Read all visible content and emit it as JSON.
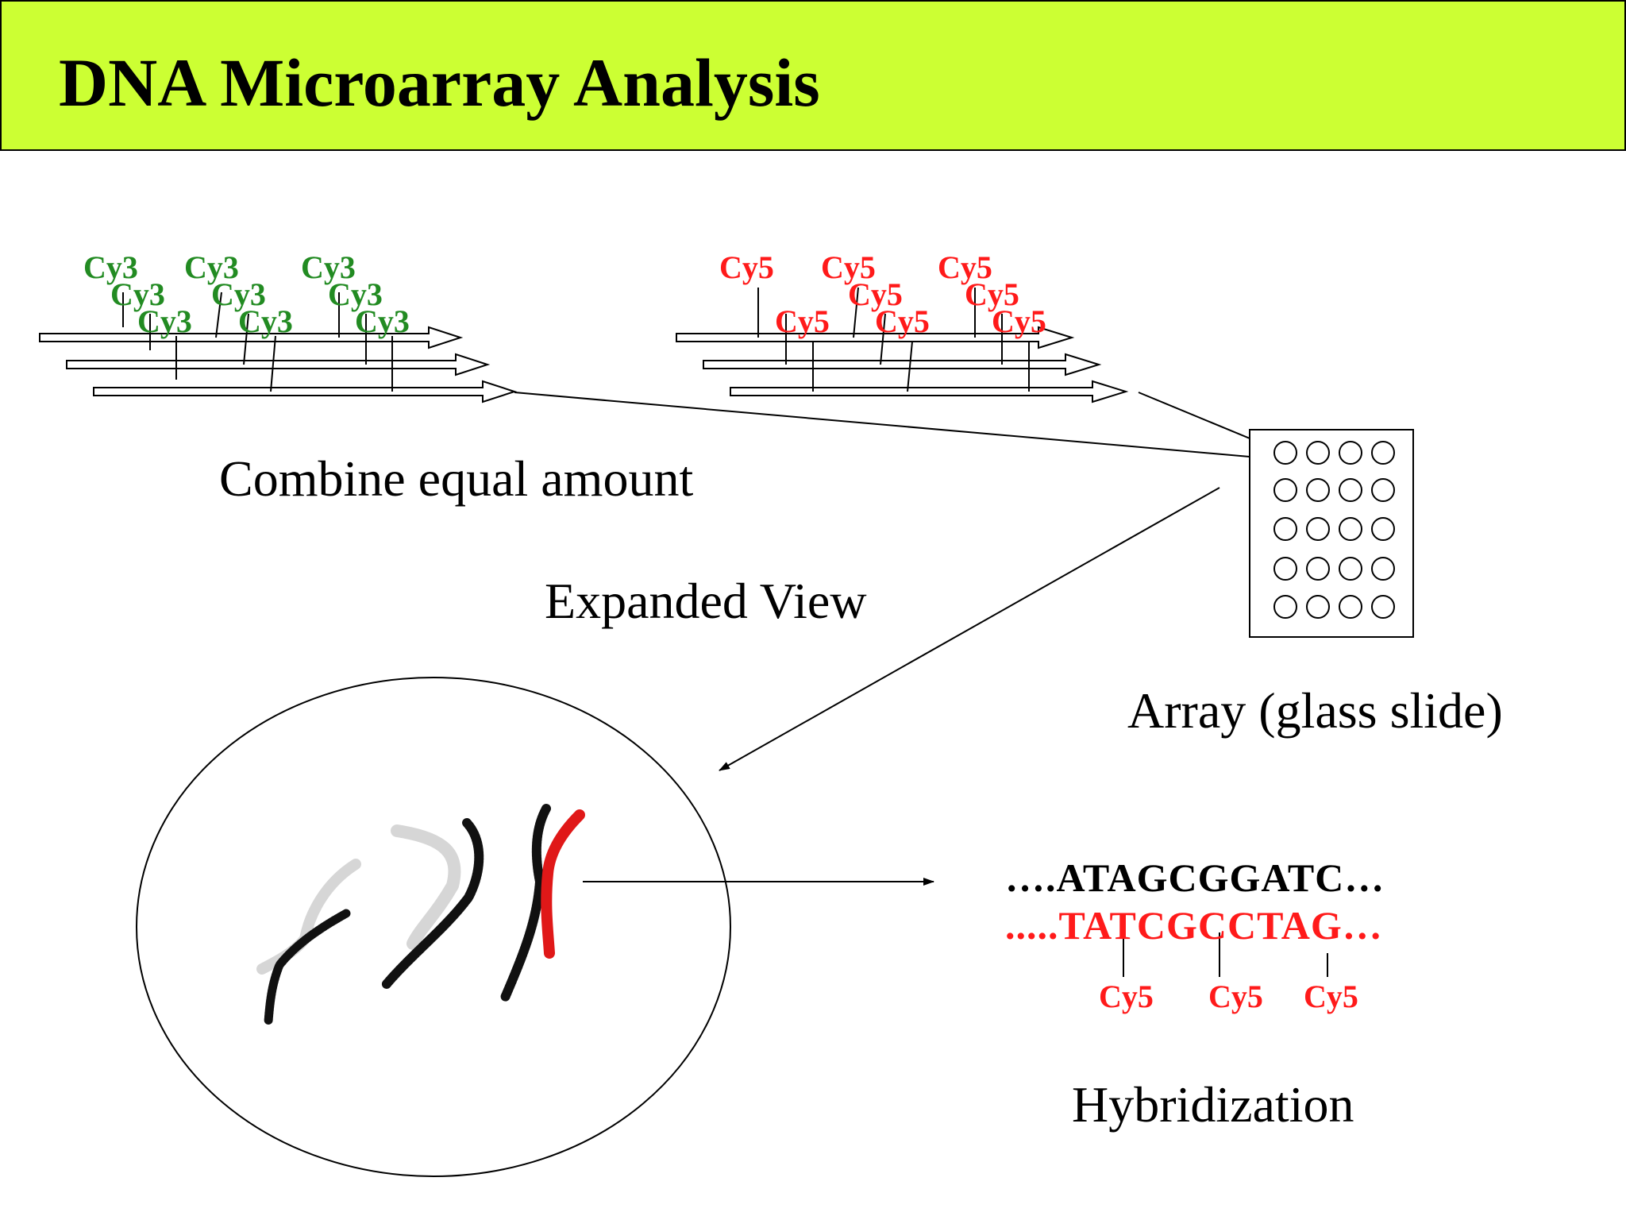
{
  "title": "DNA Microarray Analysis",
  "labels": {
    "combine": "Combine equal amount",
    "expanded": "Expanded View",
    "array": "Array (glass slide)",
    "hybridization": "Hybridization"
  },
  "dyes": {
    "green": "Cy3",
    "red": "Cy5"
  },
  "sequences": {
    "top": "….ATAGCGGATC…",
    "bottom": ".....TATCGCCTAG…"
  },
  "colors": {
    "title_bg": "#ccff33",
    "cy3": "#228b22",
    "cy5": "#ff1a1a"
  }
}
